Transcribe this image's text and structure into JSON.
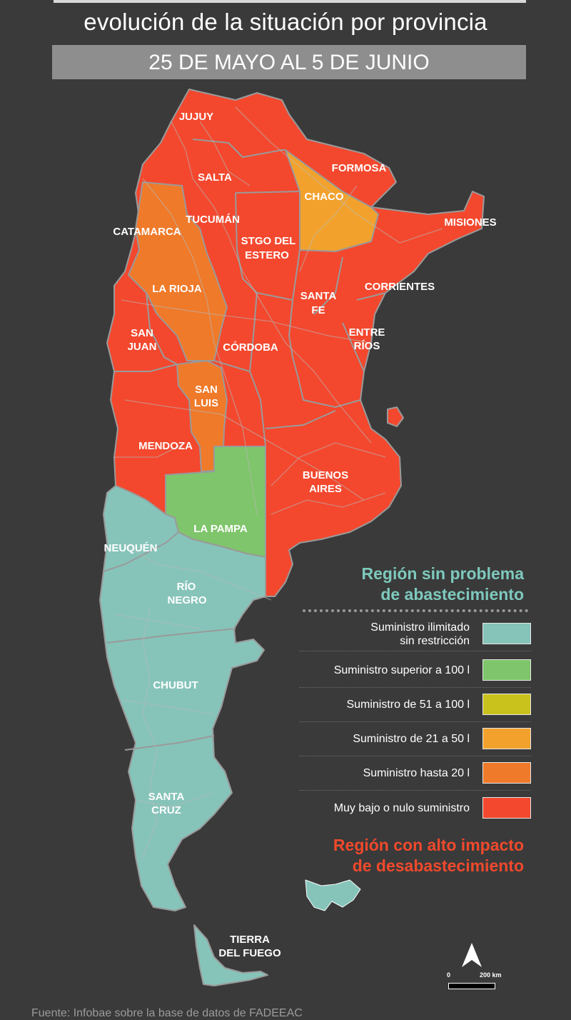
{
  "header": {
    "title": "evolución de la situación por provincia",
    "date_range": "25 DE MAYO AL 5 DE JUNIO"
  },
  "colors": {
    "background": "#3a3a3a",
    "unlimited": "#86c4ba",
    "over_100": "#7fc56b",
    "from_51_to_100": "#c9c21c",
    "from_21_to_50": "#f2a22c",
    "up_to_20": "#ef7a2a",
    "very_low": "#f3482e",
    "border": "#9a9a9a"
  },
  "provinces": [
    {
      "name": "JUJUY",
      "level": "very_low"
    },
    {
      "name": "SALTA",
      "level": "very_low"
    },
    {
      "name": "FORMOSA",
      "level": "very_low"
    },
    {
      "name": "CHACO",
      "level": "from_21_to_50"
    },
    {
      "name": "MISIONES",
      "level": "very_low"
    },
    {
      "name": "CATAMARCA",
      "level": "up_to_20"
    },
    {
      "name": "TUCUMÁN",
      "level": "very_low"
    },
    {
      "name": "STGO DEL ESTERO",
      "level": "very_low"
    },
    {
      "name": "CORRIENTES",
      "level": "very_low"
    },
    {
      "name": "LA RIOJA",
      "level": "up_to_20"
    },
    {
      "name": "SANTA FE",
      "level": "very_low"
    },
    {
      "name": "ENTRE RÍOS",
      "level": "very_low"
    },
    {
      "name": "SAN JUAN",
      "level": "very_low"
    },
    {
      "name": "CÓRDOBA",
      "level": "very_low"
    },
    {
      "name": "SAN LUIS",
      "level": "up_to_20"
    },
    {
      "name": "MENDOZA",
      "level": "very_low"
    },
    {
      "name": "BUENOS AIRES",
      "level": "very_low"
    },
    {
      "name": "LA PAMPA",
      "level": "over_100"
    },
    {
      "name": "NEUQUÉN",
      "level": "unlimited"
    },
    {
      "name": "RÍO NEGRO",
      "level": "unlimited"
    },
    {
      "name": "CHUBUT",
      "level": "unlimited"
    },
    {
      "name": "SANTA CRUZ",
      "level": "unlimited"
    },
    {
      "name": "TIERRA DEL FUEGO",
      "level": "unlimited"
    }
  ],
  "labels": {
    "jujuy": "JUJUY",
    "salta": "SALTA",
    "formosa": "FORMOSA",
    "chaco": "CHACO",
    "misiones": "MISIONES",
    "catamarca": "CATAMARCA",
    "tucuman": "TUCUMÁN",
    "stgo_1": "STGO DEL",
    "stgo_2": "ESTERO",
    "corrientes": "CORRIENTES",
    "la_rioja": "LA RIOJA",
    "santa_fe_1": "SANTA",
    "santa_fe_2": "FE",
    "entre_rios_1": "ENTRE",
    "entre_rios_2": "RÍOS",
    "san_juan_1": "SAN",
    "san_juan_2": "JUAN",
    "cordoba": "CÓRDOBA",
    "san_luis_1": "SAN",
    "san_luis_2": "LUIS",
    "mendoza": "MENDOZA",
    "buenos_aires_1": "BUENOS",
    "buenos_aires_2": "AIRES",
    "la_pampa": "LA PAMPA",
    "neuquen": "NEUQUÉN",
    "rio_negro_1": "RÍO",
    "rio_negro_2": "NEGRO",
    "chubut": "CHUBUT",
    "santa_cruz_1": "SANTA",
    "santa_cruz_2": "CRUZ",
    "tierra_1": "TIERRA",
    "tierra_2": "DEL FUEGO"
  },
  "legend": {
    "good_heading_1": "Región sin problema",
    "good_heading_2": "de abastecimiento",
    "bad_heading_1": "Región con alto impacto",
    "bad_heading_2": "de desabastecimiento",
    "items": [
      {
        "line1": "Suministro ilimitado",
        "line2": "sin restricción",
        "color": "#86c4ba"
      },
      {
        "line1": "Suministro superior a 100 l",
        "line2": "",
        "color": "#7fc56b"
      },
      {
        "line1": "Suministro de 51 a 100 l",
        "line2": "",
        "color": "#c9c21c"
      },
      {
        "line1": "Suministro de 21 a 50 l",
        "line2": "",
        "color": "#f2a22c"
      },
      {
        "line1": "Suministro hasta 20 l",
        "line2": "",
        "color": "#ef7a2a"
      },
      {
        "line1": "Muy bajo o nulo suministro",
        "line2": "",
        "color": "#f3482e"
      }
    ]
  },
  "scale": {
    "start": "0",
    "end": "200 km"
  },
  "source": "Fuente: Infobae sobre la base de datos de FADEEAC"
}
